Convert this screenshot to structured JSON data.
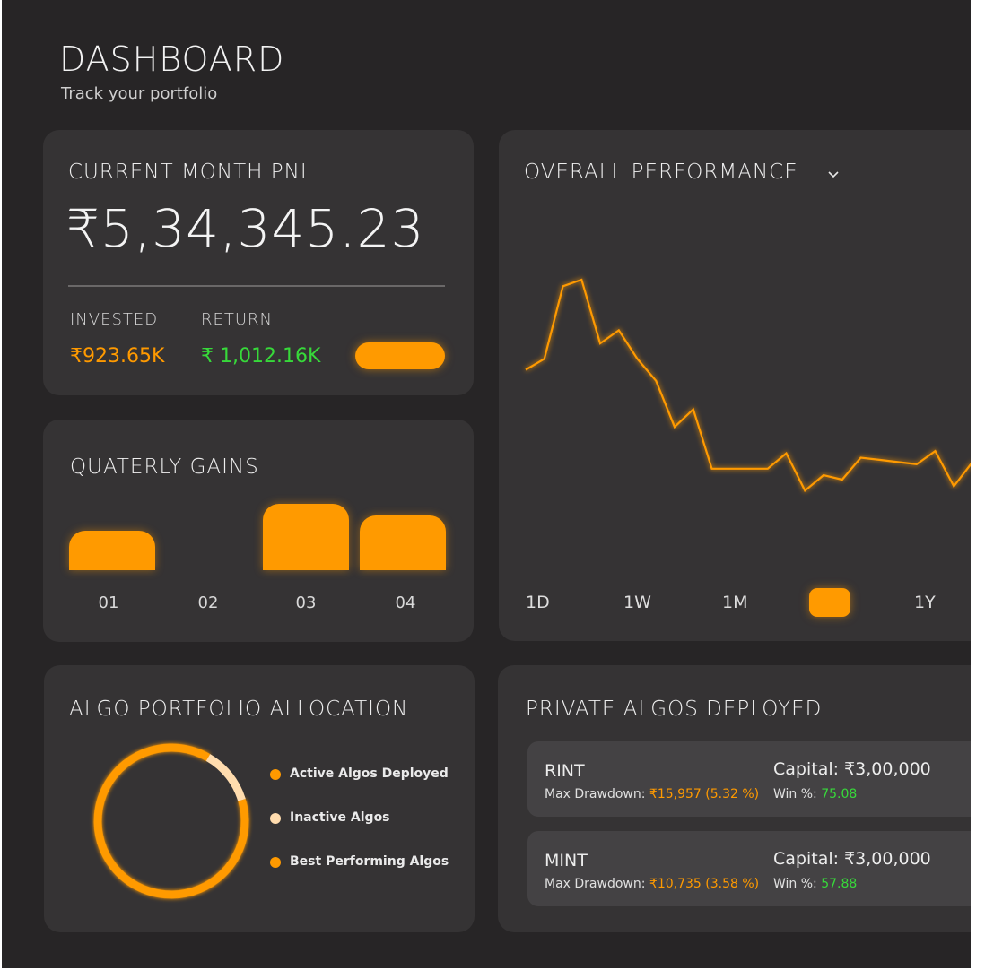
{
  "header": {
    "title": "DASHBOARD",
    "subtitle": "Track your portfolio"
  },
  "pnl_card": {
    "title": "CURRENT MONTH PNL",
    "value": "₹5,34,345.23",
    "invested_label": "INVESTED",
    "invested_value": "₹923.65K",
    "return_label": "RETURN",
    "return_value": "₹ 1,012.16K"
  },
  "gains_card": {
    "title": "QUATERLY GAINS",
    "quarters": [
      {
        "label": "01",
        "relative_height": 0.6
      },
      {
        "label": "02",
        "relative_height": 0
      },
      {
        "label": "03",
        "relative_height": 1.0
      },
      {
        "label": "04",
        "relative_height": 0.82
      }
    ]
  },
  "performance_card": {
    "title": "OVERALL PERFORMANCE",
    "ranges": [
      "1D",
      "1W",
      "1M",
      "",
      "1Y"
    ],
    "active_range_index": 3,
    "chart_data": {
      "type": "line",
      "title": "OVERALL PERFORMANCE",
      "ylim": [
        0,
        100
      ],
      "values": [
        50,
        55,
        88,
        91,
        62,
        68,
        55,
        45,
        24,
        32,
        5,
        5,
        5,
        5,
        12,
        -5,
        2,
        0,
        10,
        9,
        8,
        7,
        13,
        -3,
        8
      ]
    }
  },
  "allocation_card": {
    "title": "ALGO PORTFOLIO ALLOCATION",
    "legend": [
      {
        "label": "Active Algos Deployed",
        "color": "#ff9a00"
      },
      {
        "label": "Inactive Algos",
        "color": "#ffdcae"
      },
      {
        "label": "Best Performing Algos",
        "color": "#ff9a00"
      }
    ],
    "donut_segments": [
      {
        "name": "active",
        "fraction": 0.88,
        "color": "#ff9a00"
      },
      {
        "name": "inactive",
        "fraction": 0.12,
        "color": "#ffdcae"
      }
    ]
  },
  "algos_card": {
    "title": "PRIVATE ALGOS DEPLOYED",
    "items": [
      {
        "name": "RINT",
        "drawdown_label": "Max Drawdown:",
        "drawdown_value": "₹15,957",
        "drawdown_pct": "(5.32 %)",
        "capital": "Capital: ₹3,00,000",
        "win_label": "Win %:",
        "win_value": "75.08"
      },
      {
        "name": "MINT",
        "drawdown_label": "Max Drawdown:",
        "drawdown_value": "₹10,735",
        "drawdown_pct": "(3.58 %)",
        "capital": "Capital: ₹3,00,000",
        "win_label": "Win %:",
        "win_value": "57.88"
      }
    ]
  },
  "colors": {
    "accent": "#ff9a00",
    "positive": "#37d93a",
    "background": "#272526",
    "card": "#353334"
  }
}
